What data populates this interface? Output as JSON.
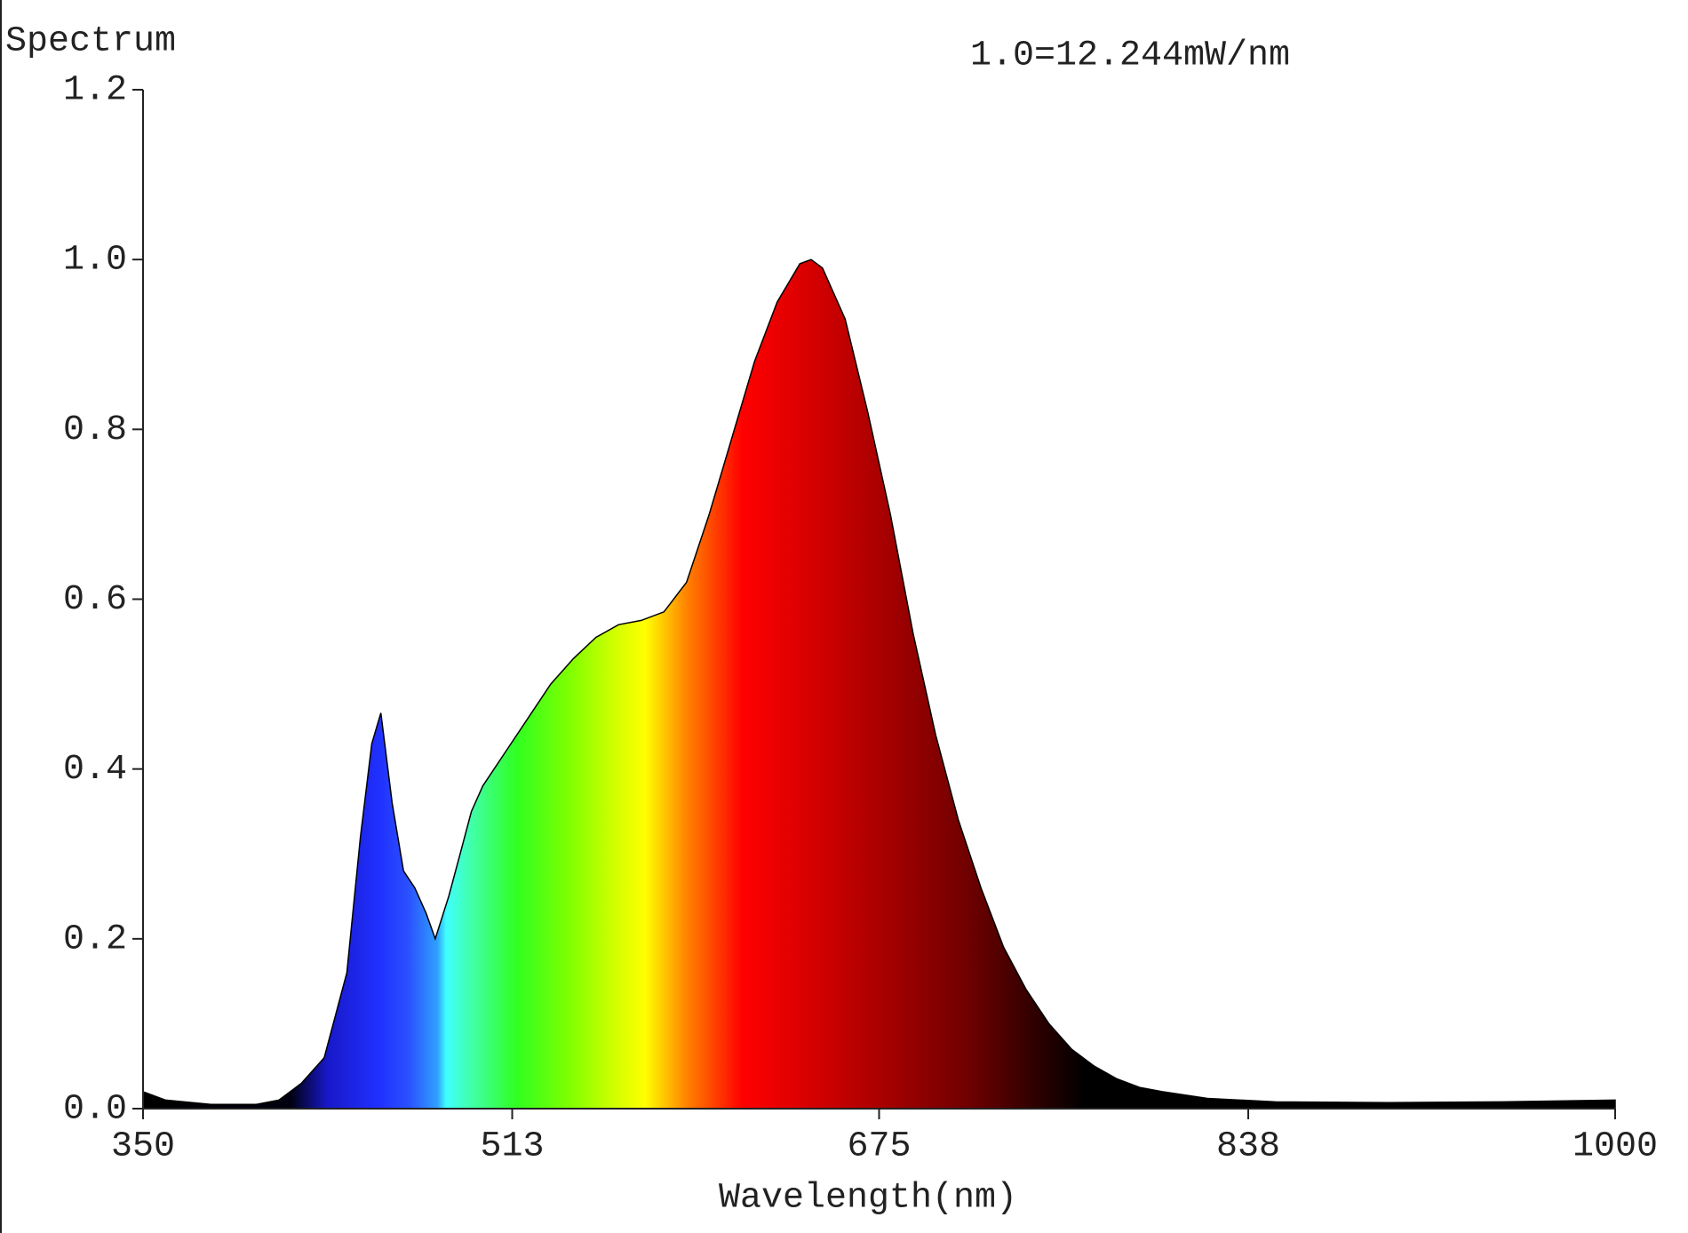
{
  "chart_data": {
    "type": "area",
    "title": "Spectrum",
    "annotation": "1.0=12.244mW/nm",
    "xlabel": "Wavelength(nm)",
    "x": [
      350,
      360,
      380,
      400,
      410,
      420,
      430,
      440,
      446,
      451,
      455,
      460,
      465,
      470,
      475,
      479,
      485,
      490,
      495,
      500,
      510,
      520,
      530,
      540,
      550,
      560,
      570,
      580,
      590,
      600,
      610,
      620,
      630,
      640,
      645,
      650,
      660,
      670,
      680,
      690,
      700,
      710,
      720,
      730,
      740,
      750,
      760,
      770,
      780,
      790,
      800,
      820,
      850,
      900,
      950,
      1000
    ],
    "values": [
      0.02,
      0.01,
      0.005,
      0.005,
      0.01,
      0.03,
      0.06,
      0.16,
      0.32,
      0.43,
      0.466,
      0.36,
      0.28,
      0.26,
      0.23,
      0.2,
      0.25,
      0.3,
      0.35,
      0.38,
      0.42,
      0.46,
      0.5,
      0.53,
      0.555,
      0.57,
      0.575,
      0.585,
      0.62,
      0.7,
      0.79,
      0.88,
      0.95,
      0.995,
      1.0,
      0.99,
      0.93,
      0.82,
      0.7,
      0.56,
      0.44,
      0.34,
      0.26,
      0.19,
      0.14,
      0.1,
      0.07,
      0.05,
      0.035,
      0.025,
      0.02,
      0.012,
      0.008,
      0.007,
      0.008,
      0.01
    ],
    "xlim": [
      350,
      1000
    ],
    "ylim": [
      0,
      1.2
    ],
    "xticks": [
      350,
      513,
      675,
      838,
      1000
    ],
    "yticks": [
      {
        "value": 0,
        "label": "0.0"
      },
      {
        "value": 0.2,
        "label": "0.2"
      },
      {
        "value": 0.4,
        "label": "0.4"
      },
      {
        "value": 0.6,
        "label": "0.6"
      },
      {
        "value": 0.8,
        "label": "0.8"
      },
      {
        "value": 1.0,
        "label": "1.0"
      },
      {
        "value": 1.2,
        "label": "1.2"
      }
    ]
  }
}
